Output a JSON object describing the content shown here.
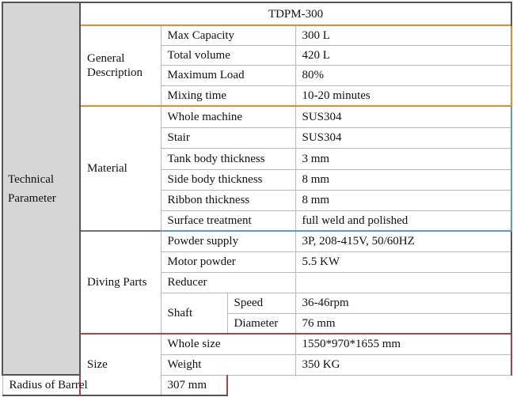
{
  "section_label": "Technical Parameter",
  "model": "TDPM-300",
  "general": {
    "label": "General Description",
    "rows": [
      {
        "name": "Max Capacity",
        "value": "300 L"
      },
      {
        "name": "Total volume",
        "value": "420 L"
      },
      {
        "name": "Maximum Load",
        "value": "80%"
      },
      {
        "name": "Mixing time",
        "value": "10-20 minutes"
      }
    ]
  },
  "material": {
    "label": "Material",
    "rows": [
      {
        "name": "Whole machine",
        "value": "SUS304"
      },
      {
        "name": "Stair",
        "value": "SUS304"
      },
      {
        "name": "Tank body thickness",
        "value": "3 mm"
      },
      {
        "name": "Side body thickness",
        "value": "8 mm"
      },
      {
        "name": "Ribbon thickness",
        "value": "8 mm"
      },
      {
        "name": "Surface treatment",
        "value": "full weld and polished"
      }
    ]
  },
  "driving": {
    "label": "Diving Parts",
    "rows": [
      {
        "name": "Powder supply",
        "value": "3P, 208-415V, 50/60HZ"
      },
      {
        "name": "Motor powder",
        "value": "5.5 KW"
      },
      {
        "name": "Reducer",
        "value": ""
      }
    ],
    "shaft": {
      "label": "Shaft",
      "rows": [
        {
          "name": "Speed",
          "value": "36-46rpm"
        },
        {
          "name": "Diameter",
          "value": "76 mm"
        }
      ]
    }
  },
  "size": {
    "label": "Size",
    "rows": [
      {
        "name": "Whole size",
        "value": "1550*970*1655 mm"
      },
      {
        "name": "Weight",
        "value": "350 KG"
      },
      {
        "name": "Radius of Barrel",
        "value": "307 mm"
      }
    ]
  },
  "colors": {
    "header_bg": "#d6d6d6",
    "general_border": "#e8892c",
    "material_border": "#5b9bd5",
    "size_border": "#b0404a"
  }
}
